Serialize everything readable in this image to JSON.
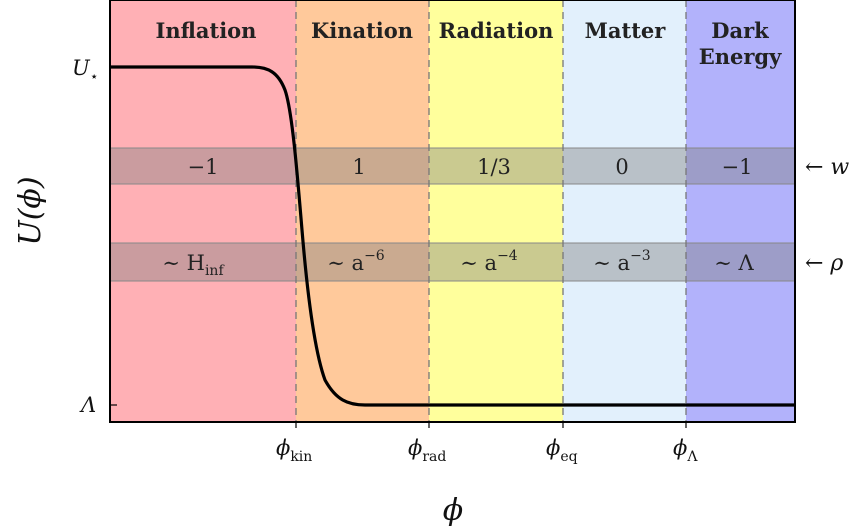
{
  "eras": [
    {
      "label": "Inflation",
      "color": "#ffb0b5"
    },
    {
      "label": "Kination",
      "color": "#ffc99b"
    },
    {
      "label": "Radiation",
      "color": "#ffff9c"
    },
    {
      "label": "Matter",
      "color": "#e2f0fc"
    },
    {
      "label_line1": "Dark",
      "label_line2": "Energy",
      "color": "#b2b2fb"
    }
  ],
  "w_band": {
    "values": [
      "−1",
      "1",
      "1/3",
      "0",
      "−1"
    ],
    "indicator": "← w"
  },
  "rho_band": {
    "values": [
      {
        "main": "∼ H",
        "sub": "inf",
        "sup": ""
      },
      {
        "main": "∼ a",
        "sub": "",
        "sup": "−6"
      },
      {
        "main": "∼ a",
        "sub": "",
        "sup": "−4"
      },
      {
        "main": "∼ a",
        "sub": "",
        "sup": "−3"
      },
      {
        "main": "∼ Λ",
        "sub": "",
        "sup": ""
      }
    ],
    "indicator": "← ρ"
  },
  "y_ticks": [
    {
      "main": "U",
      "sub": "⋆"
    },
    {
      "main": "Λ",
      "sub": ""
    }
  ],
  "x_ticks": [
    {
      "main": "ϕ",
      "sub": "kin"
    },
    {
      "main": "ϕ",
      "sub": "rad"
    },
    {
      "main": "ϕ",
      "sub": "eq"
    },
    {
      "main": "ϕ",
      "sub": "Λ"
    }
  ],
  "y_axis_title": "U(ϕ)",
  "x_axis_title": "ϕ"
}
